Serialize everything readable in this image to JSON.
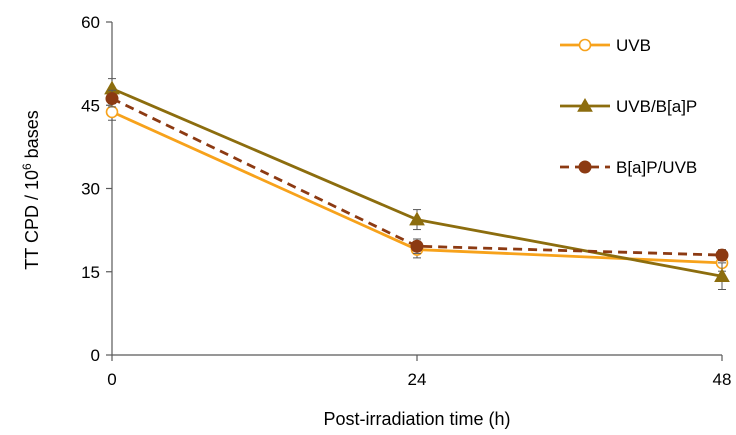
{
  "chart_data": {
    "type": "line",
    "title": "",
    "xlabel": "Post-irradiation time (h)",
    "ylabel": {
      "prefix": "TT CPD / 10",
      "superscript": "6",
      "suffix": " bases"
    },
    "x": [
      0,
      24,
      48
    ],
    "x_tick_labels": [
      "0",
      "24",
      "48"
    ],
    "xlim": [
      0,
      48
    ],
    "ylim": [
      0,
      60
    ],
    "y_ticks": [
      0,
      15,
      30,
      45,
      60
    ],
    "y_tick_labels": [
      "0",
      "15",
      "30",
      "45",
      "60"
    ],
    "grid": false,
    "legend": "top-right",
    "series": [
      {
        "name": "UVB",
        "values": [
          43.8,
          19.0,
          16.6
        ],
        "errors": [
          1.5,
          1.5,
          1.5
        ],
        "color": "#F7A21B",
        "line": "solid",
        "marker": "circle-open"
      },
      {
        "name": "UVB/B[a]P",
        "values": [
          48.0,
          24.4,
          14.2
        ],
        "errors": [
          1.8,
          1.8,
          2.4
        ],
        "color": "#8C6D0E",
        "line": "solid",
        "marker": "triangle"
      },
      {
        "name": "B[a]P/UVB",
        "values": [
          46.2,
          19.6,
          18.0
        ],
        "errors": [
          1.5,
          1.3,
          1.0
        ],
        "color": "#8C3A12",
        "line": "dashed",
        "marker": "circle"
      }
    ]
  }
}
